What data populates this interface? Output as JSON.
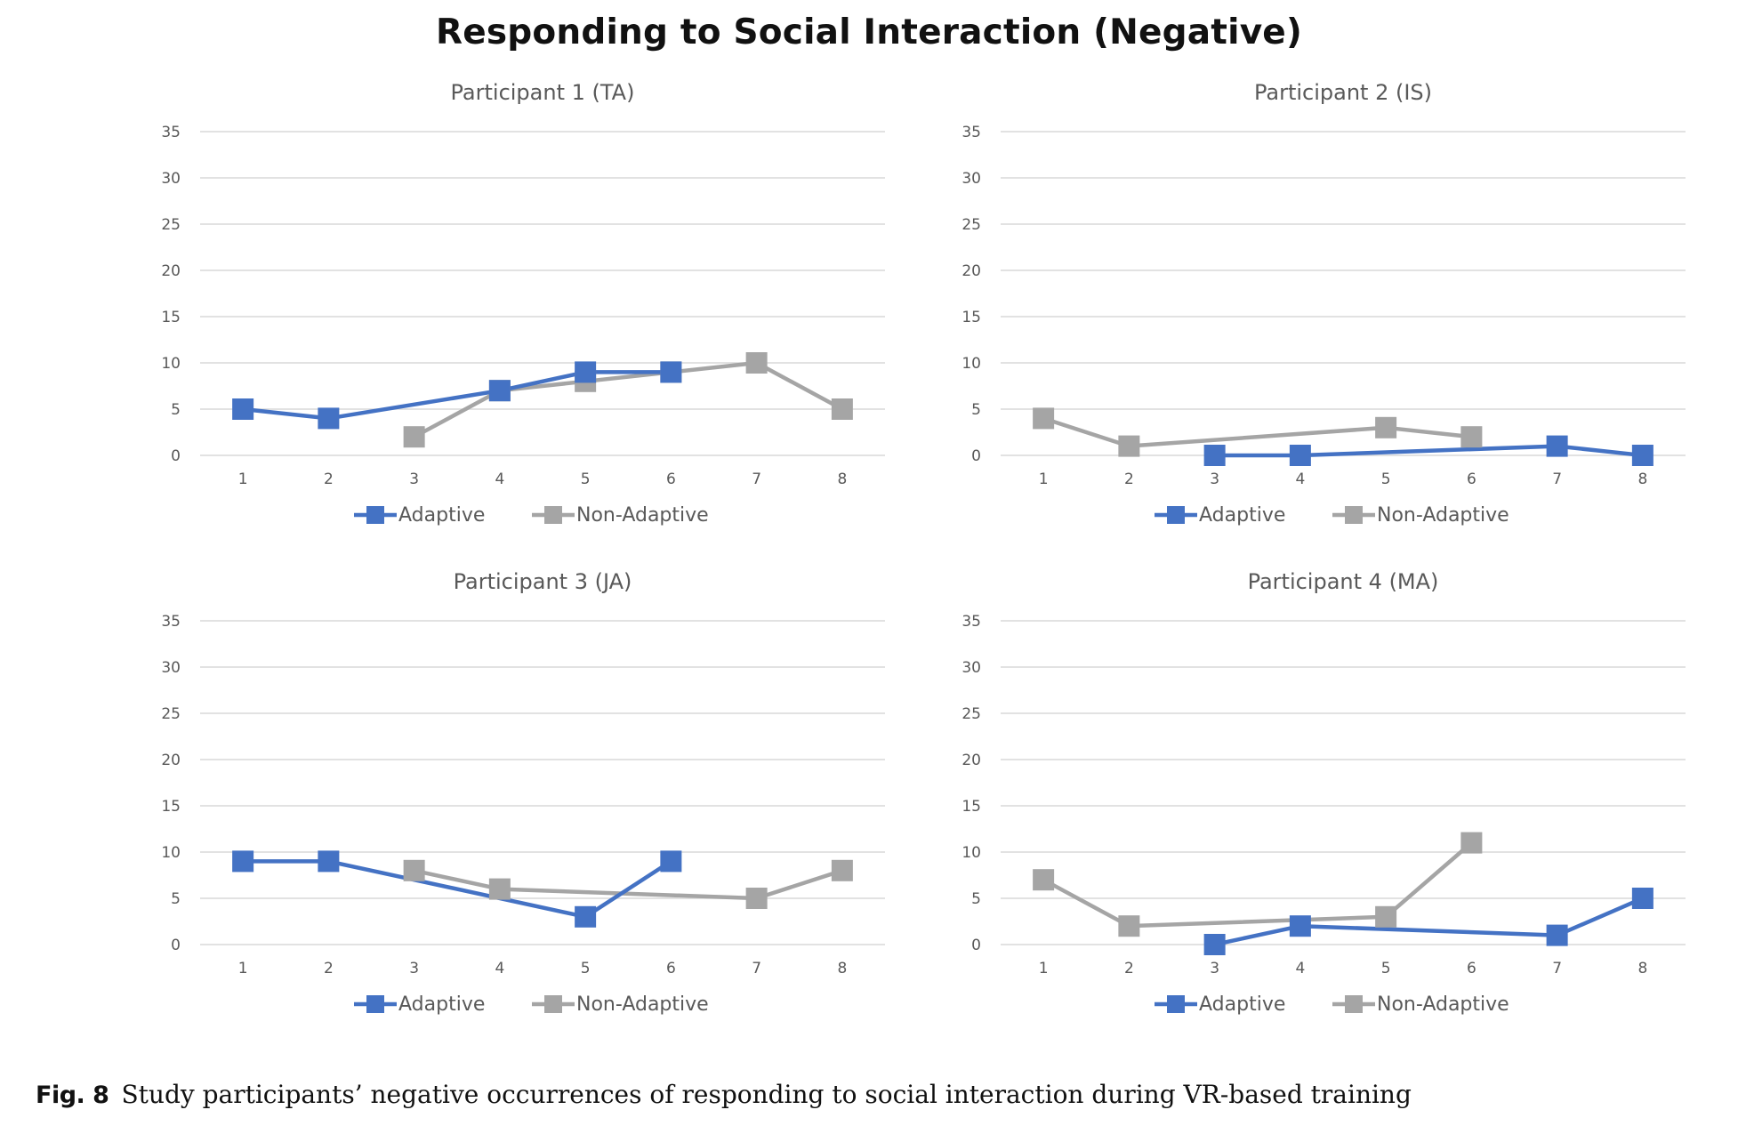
{
  "title": "Responding to Social Interaction (Negative)",
  "caption": {
    "label": "Fig. 8",
    "text": "Study participants’ negative occurrences of responding to social interaction during VR-based training"
  },
  "colors": {
    "adaptive": "#4472C4",
    "non_adaptive": "#A5A5A5",
    "gridline": "#D9D9D9",
    "axis_text": "#595959"
  },
  "chart_data": [
    {
      "type": "line",
      "title": "Participant 1 (TA)",
      "x": [
        1,
        2,
        3,
        4,
        5,
        6,
        7,
        8
      ],
      "ylim": [
        0,
        35
      ],
      "yticks": [
        0,
        5,
        10,
        15,
        20,
        25,
        30,
        35
      ],
      "grid": true,
      "legend": "bottom",
      "series": [
        {
          "name": "Adaptive",
          "values": [
            5,
            4,
            null,
            7,
            9,
            9,
            null,
            null
          ]
        },
        {
          "name": "Non-Adaptive",
          "values": [
            null,
            null,
            2,
            7,
            8,
            9,
            10,
            5
          ]
        }
      ]
    },
    {
      "type": "line",
      "title": "Participant 2 (IS)",
      "x": [
        1,
        2,
        3,
        4,
        5,
        6,
        7,
        8
      ],
      "ylim": [
        0,
        35
      ],
      "yticks": [
        0,
        5,
        10,
        15,
        20,
        25,
        30,
        35
      ],
      "grid": true,
      "legend": "bottom",
      "series": [
        {
          "name": "Adaptive",
          "values": [
            null,
            null,
            0,
            0,
            null,
            null,
            1,
            0
          ]
        },
        {
          "name": "Non-Adaptive",
          "values": [
            4,
            1,
            null,
            null,
            3,
            2,
            null,
            null
          ]
        }
      ]
    },
    {
      "type": "line",
      "title": "Participant 3 (JA)",
      "x": [
        1,
        2,
        3,
        4,
        5,
        6,
        7,
        8
      ],
      "ylim": [
        0,
        35
      ],
      "yticks": [
        0,
        5,
        10,
        15,
        20,
        25,
        30,
        35
      ],
      "grid": true,
      "legend": "bottom",
      "series": [
        {
          "name": "Adaptive",
          "values": [
            9,
            9,
            null,
            null,
            3,
            9,
            null,
            null
          ]
        },
        {
          "name": "Non-Adaptive",
          "values": [
            null,
            null,
            8,
            6,
            null,
            null,
            5,
            8
          ]
        }
      ]
    },
    {
      "type": "line",
      "title": "Participant 4 (MA)",
      "x": [
        1,
        2,
        3,
        4,
        5,
        6,
        7,
        8
      ],
      "ylim": [
        0,
        35
      ],
      "yticks": [
        0,
        5,
        10,
        15,
        20,
        25,
        30,
        35
      ],
      "grid": true,
      "legend": "bottom",
      "series": [
        {
          "name": "Adaptive",
          "values": [
            null,
            null,
            0,
            2,
            null,
            null,
            1,
            5
          ]
        },
        {
          "name": "Non-Adaptive",
          "values": [
            7,
            2,
            null,
            null,
            3,
            11,
            null,
            null
          ]
        }
      ]
    }
  ]
}
